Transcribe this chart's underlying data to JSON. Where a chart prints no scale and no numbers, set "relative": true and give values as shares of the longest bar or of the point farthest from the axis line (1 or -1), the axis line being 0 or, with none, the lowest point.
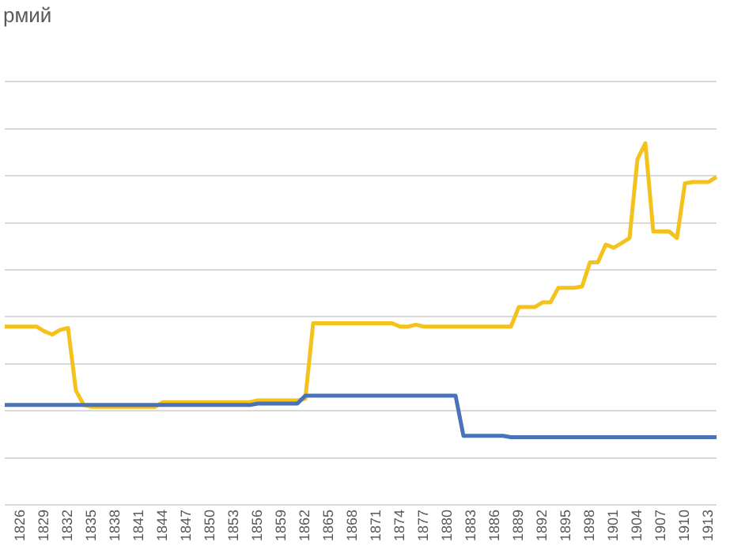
{
  "chart_data": {
    "type": "line",
    "title": "рмий",
    "relative": true,
    "grid": "y",
    "legend": false,
    "marker": "none",
    "line_style": "solid",
    "categories": [
      null,
      null,
      "1826",
      null,
      null,
      "1829",
      null,
      null,
      "1832",
      null,
      null,
      "1835",
      null,
      null,
      "1838",
      null,
      null,
      "1841",
      null,
      null,
      "1844",
      null,
      null,
      "1847",
      null,
      null,
      "1850",
      null,
      null,
      "1853",
      null,
      null,
      "1856",
      null,
      null,
      "1859",
      null,
      null,
      "1862",
      null,
      null,
      "1865",
      null,
      null,
      "1868",
      null,
      null,
      "1871",
      null,
      null,
      "1874",
      null,
      null,
      "1877",
      null,
      null,
      "1880",
      null,
      null,
      "1883",
      null,
      null,
      "1886",
      null,
      null,
      "1889",
      null,
      null,
      "1892",
      null,
      null,
      "1895",
      null,
      null,
      "1898",
      null,
      null,
      "1901",
      null,
      null,
      "1904",
      null,
      null,
      "1907",
      null,
      null,
      "1910",
      null,
      null,
      "1913",
      null
    ],
    "series": [
      {
        "color": "#4a72b8",
        "values": [
          0.276,
          0.276,
          0.276,
          0.276,
          0.276,
          0.276,
          0.276,
          0.276,
          0.276,
          0.276,
          0.276,
          0.276,
          0.276,
          0.276,
          0.276,
          0.276,
          0.276,
          0.276,
          0.276,
          0.276,
          0.276,
          0.276,
          0.276,
          0.276,
          0.276,
          0.276,
          0.276,
          0.276,
          0.276,
          0.276,
          0.276,
          0.276,
          0.28,
          0.28,
          0.28,
          0.28,
          0.28,
          0.28,
          0.302,
          0.302,
          0.302,
          0.302,
          0.302,
          0.302,
          0.302,
          0.302,
          0.302,
          0.302,
          0.302,
          0.302,
          0.302,
          0.302,
          0.302,
          0.302,
          0.302,
          0.302,
          0.302,
          0.302,
          0.191,
          0.191,
          0.191,
          0.191,
          0.191,
          0.191,
          0.187,
          0.187,
          0.187,
          0.187,
          0.187,
          0.187,
          0.187,
          0.187,
          0.187,
          0.187,
          0.187,
          0.187,
          0.187,
          0.187,
          0.187,
          0.187,
          0.187,
          0.187,
          0.187,
          0.187,
          0.187,
          0.187,
          0.187,
          0.187,
          0.187,
          0.187,
          0.187
        ]
      },
      {
        "color": "#f4c21c",
        "values": [
          0.493,
          0.493,
          0.493,
          0.493,
          0.493,
          0.48,
          0.471,
          0.484,
          0.489,
          0.316,
          0.276,
          0.271,
          0.271,
          0.271,
          0.271,
          0.271,
          0.271,
          0.271,
          0.271,
          0.271,
          0.284,
          0.284,
          0.284,
          0.284,
          0.284,
          0.284,
          0.284,
          0.284,
          0.284,
          0.284,
          0.284,
          0.284,
          0.289,
          0.289,
          0.289,
          0.289,
          0.289,
          0.289,
          0.293,
          0.502,
          0.502,
          0.502,
          0.502,
          0.502,
          0.502,
          0.502,
          0.502,
          0.502,
          0.502,
          0.502,
          0.493,
          0.493,
          0.498,
          0.493,
          0.493,
          0.493,
          0.493,
          0.493,
          0.493,
          0.493,
          0.493,
          0.493,
          0.493,
          0.493,
          0.493,
          0.547,
          0.547,
          0.547,
          0.56,
          0.56,
          0.6,
          0.6,
          0.6,
          0.604,
          0.671,
          0.671,
          0.72,
          0.711,
          0.724,
          0.738,
          0.956,
          1,
          0.756,
          0.756,
          0.756,
          0.738,
          0.889,
          0.893,
          0.893,
          0.893,
          0.907
        ]
      }
    ]
  }
}
